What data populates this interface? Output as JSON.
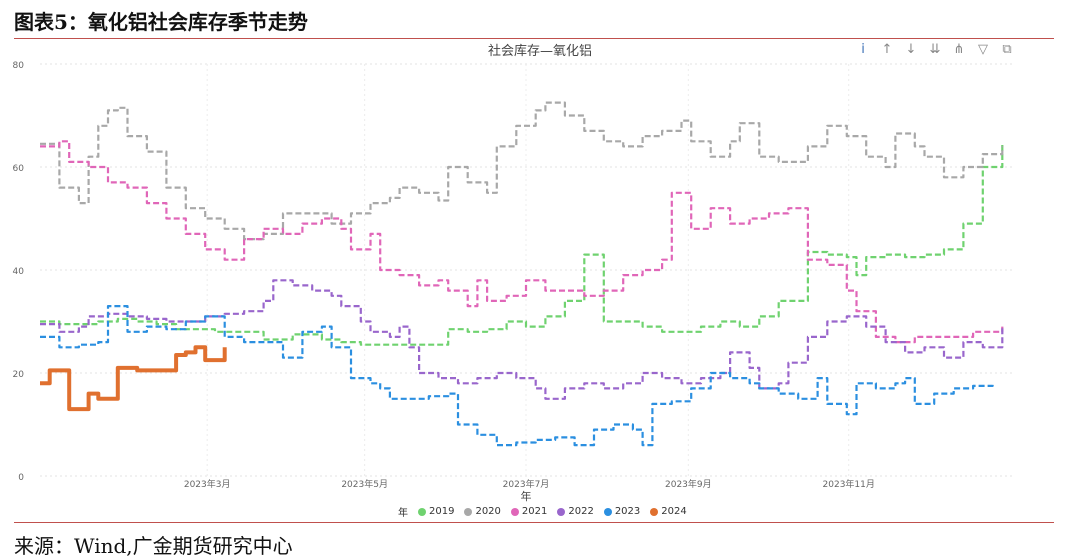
{
  "header": {
    "figure_title": "图表5：氧化铝社会库存季节走势"
  },
  "footer": {
    "source": "来源：Wind,广金期货研究中心"
  },
  "toolbar": {
    "icons": [
      "info-icon",
      "arrow-up-icon",
      "arrow-down-icon",
      "drill-down-icon",
      "expand-hierarchy-icon",
      "filter-icon",
      "focus-mode-icon"
    ],
    "glyphs": [
      "i",
      "↑",
      "↓",
      "⇊",
      "⋔",
      "▽",
      "⧉"
    ]
  },
  "colors": {
    "2019": "#6fd26f",
    "2020": "#a8a8a8",
    "2021": "#e066b8",
    "2022": "#9966cc",
    "2023": "#2b8fe0",
    "2024": "#e0702f",
    "rule": "#c0504d"
  },
  "chart_data": {
    "type": "line",
    "title": "社会库存—氧化铝",
    "xlabel": "年",
    "ylabel": "",
    "xlim": [
      0,
      1
    ],
    "ylim": [
      0,
      80
    ],
    "y_ticks": [
      0,
      20,
      40,
      60,
      80
    ],
    "x_ticks": [
      {
        "at": 0.172,
        "label": "2023年3月"
      },
      {
        "at": 0.334,
        "label": "2023年5月"
      },
      {
        "at": 0.5,
        "label": "2023年7月"
      },
      {
        "at": 0.667,
        "label": "2023年9月"
      },
      {
        "at": 0.832,
        "label": "2023年11月"
      }
    ],
    "grid": true,
    "legend_title": "年",
    "legend_position": "bottom",
    "series": [
      {
        "name": "2019",
        "style": "dashed",
        "points": [
          [
            0.0,
            30
          ],
          [
            0.02,
            29.5
          ],
          [
            0.04,
            29.5
          ],
          [
            0.06,
            30
          ],
          [
            0.08,
            30.5
          ],
          [
            0.1,
            30
          ],
          [
            0.12,
            29.5
          ],
          [
            0.14,
            28.5
          ],
          [
            0.16,
            28.5
          ],
          [
            0.18,
            28
          ],
          [
            0.2,
            28
          ],
          [
            0.23,
            26.5
          ],
          [
            0.26,
            27.5
          ],
          [
            0.29,
            26.5
          ],
          [
            0.31,
            26
          ],
          [
            0.33,
            25.5
          ],
          [
            0.36,
            25.5
          ],
          [
            0.39,
            25.5
          ],
          [
            0.41,
            25.5
          ],
          [
            0.42,
            28.5
          ],
          [
            0.44,
            28
          ],
          [
            0.46,
            28.5
          ],
          [
            0.48,
            30
          ],
          [
            0.5,
            29
          ],
          [
            0.52,
            31
          ],
          [
            0.54,
            34
          ],
          [
            0.56,
            43
          ],
          [
            0.58,
            30
          ],
          [
            0.6,
            30
          ],
          [
            0.62,
            29
          ],
          [
            0.64,
            28
          ],
          [
            0.66,
            28
          ],
          [
            0.68,
            29
          ],
          [
            0.7,
            30
          ],
          [
            0.72,
            29
          ],
          [
            0.74,
            31
          ],
          [
            0.76,
            34
          ],
          [
            0.78,
            34
          ],
          [
            0.79,
            43.5
          ],
          [
            0.81,
            43
          ],
          [
            0.83,
            42.5
          ],
          [
            0.84,
            39
          ],
          [
            0.85,
            42.5
          ],
          [
            0.87,
            43
          ],
          [
            0.89,
            42.5
          ],
          [
            0.91,
            43
          ],
          [
            0.93,
            44
          ],
          [
            0.95,
            49
          ],
          [
            0.97,
            60
          ],
          [
            0.99,
            64.5
          ]
        ]
      },
      {
        "name": "2020",
        "style": "dashed",
        "points": [
          [
            0.0,
            64.5
          ],
          [
            0.02,
            56
          ],
          [
            0.04,
            53
          ],
          [
            0.05,
            62
          ],
          [
            0.06,
            68
          ],
          [
            0.07,
            71
          ],
          [
            0.08,
            71.5
          ],
          [
            0.09,
            66
          ],
          [
            0.11,
            63
          ],
          [
            0.13,
            56
          ],
          [
            0.15,
            52
          ],
          [
            0.17,
            50
          ],
          [
            0.19,
            48
          ],
          [
            0.21,
            46
          ],
          [
            0.23,
            47
          ],
          [
            0.25,
            51
          ],
          [
            0.28,
            51
          ],
          [
            0.3,
            49
          ],
          [
            0.32,
            51
          ],
          [
            0.34,
            53
          ],
          [
            0.36,
            54
          ],
          [
            0.37,
            56
          ],
          [
            0.39,
            55
          ],
          [
            0.41,
            53.5
          ],
          [
            0.42,
            60
          ],
          [
            0.44,
            57
          ],
          [
            0.46,
            55
          ],
          [
            0.47,
            64
          ],
          [
            0.49,
            68
          ],
          [
            0.51,
            71
          ],
          [
            0.52,
            72.5
          ],
          [
            0.54,
            70
          ],
          [
            0.56,
            67
          ],
          [
            0.58,
            65
          ],
          [
            0.6,
            64
          ],
          [
            0.62,
            66
          ],
          [
            0.64,
            67
          ],
          [
            0.66,
            69
          ],
          [
            0.67,
            65
          ],
          [
            0.69,
            62
          ],
          [
            0.71,
            65
          ],
          [
            0.72,
            68.5
          ],
          [
            0.74,
            62
          ],
          [
            0.76,
            61
          ],
          [
            0.78,
            61
          ],
          [
            0.79,
            64
          ],
          [
            0.81,
            68
          ],
          [
            0.83,
            66
          ],
          [
            0.85,
            62
          ],
          [
            0.87,
            60
          ],
          [
            0.88,
            66.5
          ],
          [
            0.9,
            64
          ],
          [
            0.91,
            62
          ],
          [
            0.93,
            58
          ],
          [
            0.95,
            60
          ],
          [
            0.97,
            62.5
          ],
          [
            0.99,
            64
          ]
        ]
      },
      {
        "name": "2021",
        "style": "dashed",
        "points": [
          [
            0.0,
            64
          ],
          [
            0.02,
            65
          ],
          [
            0.03,
            61
          ],
          [
            0.05,
            60
          ],
          [
            0.07,
            57
          ],
          [
            0.09,
            56
          ],
          [
            0.11,
            53
          ],
          [
            0.13,
            50
          ],
          [
            0.15,
            47
          ],
          [
            0.17,
            44
          ],
          [
            0.19,
            42
          ],
          [
            0.21,
            46
          ],
          [
            0.23,
            48
          ],
          [
            0.25,
            47
          ],
          [
            0.27,
            49
          ],
          [
            0.29,
            50
          ],
          [
            0.31,
            48
          ],
          [
            0.32,
            44
          ],
          [
            0.34,
            47
          ],
          [
            0.35,
            40
          ],
          [
            0.37,
            39
          ],
          [
            0.39,
            37
          ],
          [
            0.41,
            38
          ],
          [
            0.42,
            36
          ],
          [
            0.44,
            33
          ],
          [
            0.45,
            38
          ],
          [
            0.46,
            34
          ],
          [
            0.48,
            35
          ],
          [
            0.5,
            38
          ],
          [
            0.52,
            36
          ],
          [
            0.54,
            36
          ],
          [
            0.56,
            35
          ],
          [
            0.58,
            36
          ],
          [
            0.6,
            39
          ],
          [
            0.62,
            40
          ],
          [
            0.64,
            42
          ],
          [
            0.65,
            55
          ],
          [
            0.67,
            48
          ],
          [
            0.69,
            52
          ],
          [
            0.71,
            49
          ],
          [
            0.73,
            50
          ],
          [
            0.75,
            51
          ],
          [
            0.77,
            52
          ],
          [
            0.79,
            42
          ],
          [
            0.81,
            41
          ],
          [
            0.83,
            36
          ],
          [
            0.84,
            32
          ],
          [
            0.86,
            27
          ],
          [
            0.88,
            26
          ],
          [
            0.9,
            27
          ],
          [
            0.92,
            27
          ],
          [
            0.94,
            27
          ],
          [
            0.96,
            28
          ],
          [
            0.99,
            29
          ]
        ]
      },
      {
        "name": "2022",
        "style": "dashed",
        "points": [
          [
            0.0,
            29.5
          ],
          [
            0.02,
            28
          ],
          [
            0.04,
            29
          ],
          [
            0.05,
            31
          ],
          [
            0.07,
            31.5
          ],
          [
            0.09,
            31
          ],
          [
            0.11,
            30.5
          ],
          [
            0.13,
            30
          ],
          [
            0.15,
            30
          ],
          [
            0.17,
            31
          ],
          [
            0.19,
            31.5
          ],
          [
            0.21,
            32
          ],
          [
            0.23,
            34
          ],
          [
            0.24,
            38
          ],
          [
            0.26,
            37
          ],
          [
            0.28,
            36
          ],
          [
            0.3,
            35
          ],
          [
            0.31,
            33
          ],
          [
            0.33,
            30
          ],
          [
            0.34,
            28
          ],
          [
            0.36,
            27
          ],
          [
            0.37,
            29
          ],
          [
            0.38,
            25
          ],
          [
            0.39,
            20
          ],
          [
            0.41,
            19
          ],
          [
            0.43,
            18
          ],
          [
            0.45,
            19
          ],
          [
            0.47,
            20
          ],
          [
            0.49,
            19
          ],
          [
            0.51,
            17
          ],
          [
            0.52,
            15
          ],
          [
            0.54,
            17
          ],
          [
            0.56,
            18
          ],
          [
            0.58,
            17
          ],
          [
            0.6,
            18
          ],
          [
            0.62,
            20
          ],
          [
            0.64,
            19
          ],
          [
            0.66,
            18
          ],
          [
            0.68,
            19
          ],
          [
            0.7,
            20
          ],
          [
            0.71,
            24
          ],
          [
            0.73,
            21
          ],
          [
            0.74,
            17
          ],
          [
            0.76,
            18
          ],
          [
            0.77,
            22
          ],
          [
            0.79,
            27
          ],
          [
            0.81,
            30
          ],
          [
            0.83,
            31
          ],
          [
            0.85,
            29
          ],
          [
            0.87,
            26
          ],
          [
            0.89,
            24
          ],
          [
            0.91,
            25
          ],
          [
            0.93,
            23
          ],
          [
            0.95,
            26
          ],
          [
            0.97,
            25
          ],
          [
            0.99,
            29
          ]
        ]
      },
      {
        "name": "2023",
        "style": "dashed",
        "points": [
          [
            0.0,
            27
          ],
          [
            0.02,
            25
          ],
          [
            0.04,
            25.5
          ],
          [
            0.06,
            26
          ],
          [
            0.07,
            33
          ],
          [
            0.09,
            28
          ],
          [
            0.11,
            29
          ],
          [
            0.13,
            28.5
          ],
          [
            0.15,
            30
          ],
          [
            0.17,
            31
          ],
          [
            0.19,
            27
          ],
          [
            0.21,
            26
          ],
          [
            0.23,
            26
          ],
          [
            0.25,
            23
          ],
          [
            0.27,
            28
          ],
          [
            0.29,
            29
          ],
          [
            0.3,
            25
          ],
          [
            0.32,
            19
          ],
          [
            0.34,
            18
          ],
          [
            0.35,
            17
          ],
          [
            0.36,
            15
          ],
          [
            0.38,
            15
          ],
          [
            0.4,
            15.5
          ],
          [
            0.42,
            16
          ],
          [
            0.43,
            10
          ],
          [
            0.45,
            8
          ],
          [
            0.47,
            6
          ],
          [
            0.49,
            6.5
          ],
          [
            0.51,
            7
          ],
          [
            0.53,
            7.5
          ],
          [
            0.55,
            6
          ],
          [
            0.57,
            9
          ],
          [
            0.59,
            10
          ],
          [
            0.61,
            9
          ],
          [
            0.62,
            6
          ],
          [
            0.63,
            14
          ],
          [
            0.65,
            14.5
          ],
          [
            0.67,
            17
          ],
          [
            0.69,
            20
          ],
          [
            0.71,
            19
          ],
          [
            0.73,
            18
          ],
          [
            0.74,
            17
          ],
          [
            0.76,
            16
          ],
          [
            0.78,
            15
          ],
          [
            0.8,
            19
          ],
          [
            0.81,
            14
          ],
          [
            0.83,
            12
          ],
          [
            0.84,
            18
          ],
          [
            0.86,
            17
          ],
          [
            0.88,
            18
          ],
          [
            0.89,
            19
          ],
          [
            0.9,
            14
          ],
          [
            0.92,
            16
          ],
          [
            0.94,
            17
          ],
          [
            0.96,
            17.5
          ],
          [
            0.98,
            18
          ]
        ]
      },
      {
        "name": "2024",
        "style": "solid",
        "points": [
          [
            0.0,
            18
          ],
          [
            0.01,
            20.5
          ],
          [
            0.02,
            20.5
          ],
          [
            0.03,
            13
          ],
          [
            0.05,
            16
          ],
          [
            0.06,
            15
          ],
          [
            0.07,
            15
          ],
          [
            0.08,
            21
          ],
          [
            0.1,
            20.5
          ],
          [
            0.11,
            20.5
          ],
          [
            0.12,
            20.5
          ],
          [
            0.14,
            23.5
          ],
          [
            0.15,
            24
          ],
          [
            0.16,
            25
          ],
          [
            0.17,
            22.5
          ],
          [
            0.18,
            22.5
          ],
          [
            0.19,
            25
          ]
        ]
      }
    ]
  }
}
